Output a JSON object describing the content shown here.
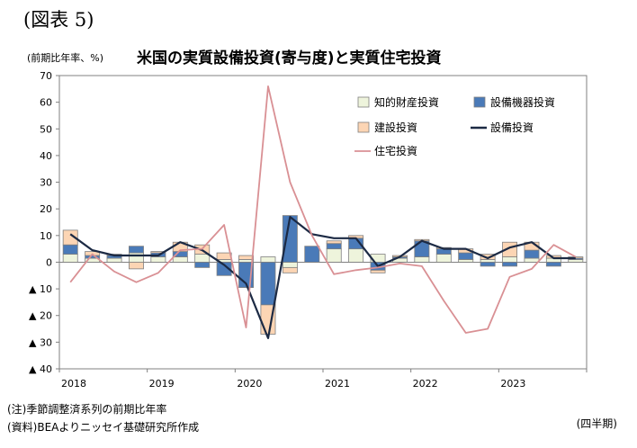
{
  "header": {
    "figure_label": "(図表 5)",
    "unit": "(前期比年率、%)",
    "title": "米国の実質設備投資(寄与度)と実質住宅投資"
  },
  "notes": {
    "note": "(注)季節調整済系列の前期比年率",
    "source": "(資料)BEAよりニッセイ基礎研究所作成",
    "period": "(四半期)"
  },
  "chart_data": {
    "type": "bar",
    "stacked": true,
    "x": [
      "2018Q1",
      "2018Q2",
      "2018Q3",
      "2018Q4",
      "2019Q1",
      "2019Q2",
      "2019Q3",
      "2019Q4",
      "2020Q1",
      "2020Q2",
      "2020Q3",
      "2020Q4",
      "2021Q1",
      "2021Q2",
      "2021Q3",
      "2021Q4",
      "2022Q1",
      "2022Q2",
      "2022Q3",
      "2022Q4",
      "2023Q1",
      "2023Q2",
      "2023Q3",
      "2023Q4"
    ],
    "x_tick_labels": [
      "2018",
      "2019",
      "2020",
      "2021",
      "2022",
      "2023"
    ],
    "ylim": [
      -40,
      70
    ],
    "y_ticks": [
      70,
      60,
      50,
      40,
      30,
      20,
      10,
      0,
      -10,
      -20,
      -30,
      -40
    ],
    "y_tick_labels": [
      "70",
      "60",
      "50",
      "40",
      "30",
      "20",
      "10",
      "0",
      "▲ 10",
      "▲ 20",
      "▲ 30",
      "▲ 40"
    ],
    "grid": false,
    "legend_position": "top-right",
    "series": [
      {
        "name": "知的財産投資",
        "kind": "bar",
        "color": "#eef4dc",
        "values": [
          3,
          1.5,
          1.5,
          3.5,
          2,
          2,
          3,
          1,
          1,
          2,
          -2,
          0,
          5,
          5,
          3,
          1.5,
          2,
          3,
          1,
          1,
          2,
          1.5,
          1.5,
          1
        ]
      },
      {
        "name": "設備機器投資",
        "kind": "bar",
        "color": "#4a7ab8",
        "values": [
          3.5,
          1,
          1,
          2.5,
          1.5,
          2,
          -2,
          -5,
          -9.5,
          -16,
          17.5,
          6,
          2,
          4,
          -3,
          0.5,
          6,
          2,
          2.5,
          -1.5,
          -1.5,
          3,
          -1.5,
          0.5
        ]
      },
      {
        "name": "建設投資",
        "kind": "bar",
        "color": "#fcd5b4",
        "values": [
          5.5,
          1.5,
          0.5,
          -2.5,
          0.5,
          3.5,
          3.5,
          2.5,
          1.5,
          -11,
          -2,
          0,
          1,
          1,
          -1,
          0.5,
          0.5,
          0.5,
          1.5,
          2,
          5.5,
          3,
          1,
          0.5
        ]
      },
      {
        "name": "設備投資",
        "kind": "line",
        "color": "#1c2a44",
        "values": [
          10.5,
          4.5,
          2.5,
          2.5,
          2.5,
          7.5,
          4.5,
          -1,
          -8,
          -28.5,
          17,
          10.5,
          9,
          9,
          -1.5,
          2,
          8,
          5,
          5,
          1.5,
          5.5,
          7.5,
          1.5,
          1.5
        ]
      },
      {
        "name": "住宅投資",
        "kind": "line",
        "color": "#d99094",
        "values": [
          -7.5,
          3,
          -3.5,
          -7.5,
          -4,
          4.5,
          5,
          14,
          -24.5,
          66,
          30,
          10,
          -4.5,
          -3,
          -2,
          -0.5,
          -1.5,
          -14.5,
          -26.5,
          -25,
          -5.5,
          -2.5,
          6.5,
          2
        ]
      }
    ]
  }
}
